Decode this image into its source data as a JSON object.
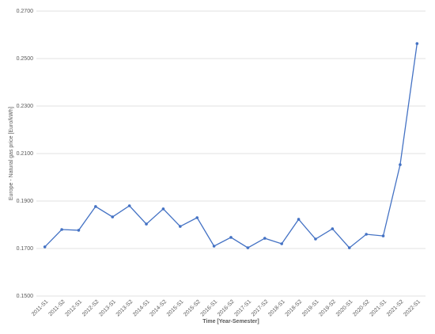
{
  "chart_data": {
    "type": "line",
    "y_label": "Europe - Natural gas price [Euro/kWh]",
    "x_label": "Time [Year-Semester]",
    "categories": [
      "2011-S1",
      "2011-S2",
      "2012-S1",
      "2012-S2",
      "2013-S1",
      "2013-S2",
      "2014-S1",
      "2014-S2",
      "2015-S1",
      "2015-S2",
      "2016-S1",
      "2016-S2",
      "2017-S1",
      "2017-S2",
      "2018-S1",
      "2018-S2",
      "2019-S1",
      "2019-S2",
      "2020-S1",
      "2020-S2",
      "2021-S1",
      "2021-S2",
      "2022-S1"
    ],
    "series": [
      {
        "color": "#4472c4",
        "values": [
          0.1707,
          0.178,
          0.1777,
          0.1877,
          0.1833,
          0.188,
          0.1803,
          0.1867,
          0.1793,
          0.183,
          0.171,
          0.1747,
          0.1703,
          0.1743,
          0.172,
          0.1823,
          0.174,
          0.1783,
          0.1703,
          0.176,
          0.1753,
          0.2053,
          0.2563
        ]
      }
    ],
    "ylim": [
      0.15,
      0.27
    ],
    "yticks": [
      {
        "value": 0.15,
        "label": "0.1500"
      },
      {
        "value": 0.17,
        "label": "0.1700"
      },
      {
        "value": 0.19,
        "label": "0.1900"
      },
      {
        "value": 0.21,
        "label": "0.2100"
      },
      {
        "value": 0.23,
        "label": "0.2300"
      },
      {
        "value": 0.25,
        "label": "0.2500"
      },
      {
        "value": 0.27,
        "label": "0.2700"
      }
    ],
    "grid": true
  }
}
